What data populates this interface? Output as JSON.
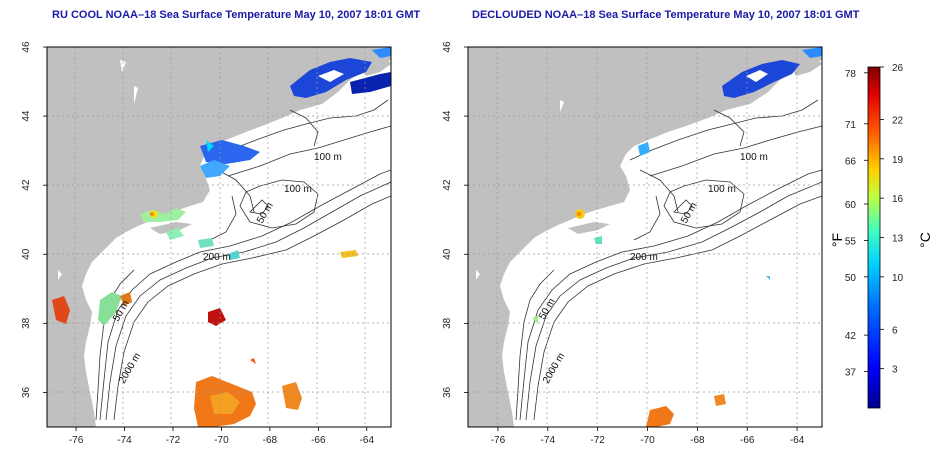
{
  "panels": [
    {
      "title": "RU COOL NOAA–18 Sea Surface Temperature May 10, 2007 18:01 GMT",
      "contour_labels": [
        "100 m",
        "100 m",
        "50 m",
        "200 m",
        "50 m",
        "2000 m"
      ]
    },
    {
      "title": "DECLOUDED NOAA–18 Sea Surface Temperature May 10, 2007 18:01 GMT",
      "contour_labels": [
        "100 m",
        "100 m",
        "50 m",
        "200 m",
        "50 m",
        "2000 m"
      ]
    }
  ],
  "axes": {
    "x_ticks": [
      "-76",
      "-74",
      "-72",
      "-70",
      "-68",
      "-66",
      "-64"
    ],
    "x_values": [
      -76,
      -74,
      -72,
      -70,
      -68,
      -66,
      -64
    ],
    "x_range": [
      -77.2,
      -63
    ],
    "y_ticks": [
      "36",
      "38",
      "40",
      "42",
      "44",
      "46"
    ],
    "y_values": [
      36,
      38,
      40,
      42,
      44,
      46
    ],
    "y_range": [
      35,
      46
    ]
  },
  "colorbar": {
    "fahrenheit_label": "°F",
    "celsius_label": "°C",
    "fahrenheit_ticks": [
      "78",
      "71",
      "66",
      "60",
      "55",
      "50",
      "42",
      "37"
    ],
    "fahrenheit_values": [
      78,
      71,
      66,
      60,
      55,
      50,
      42,
      37
    ],
    "celsius_ticks": [
      "26",
      "22",
      "19",
      "16",
      "13",
      "10",
      "6",
      "3"
    ],
    "celsius_values": [
      26,
      22,
      19,
      16,
      13,
      10,
      6,
      3
    ],
    "celsius_range": [
      0,
      26
    ]
  },
  "colors": {
    "land": "#c0c0c0",
    "title": "#1a1aa6",
    "contour": "#333333",
    "grid": "#9a9a9a"
  }
}
